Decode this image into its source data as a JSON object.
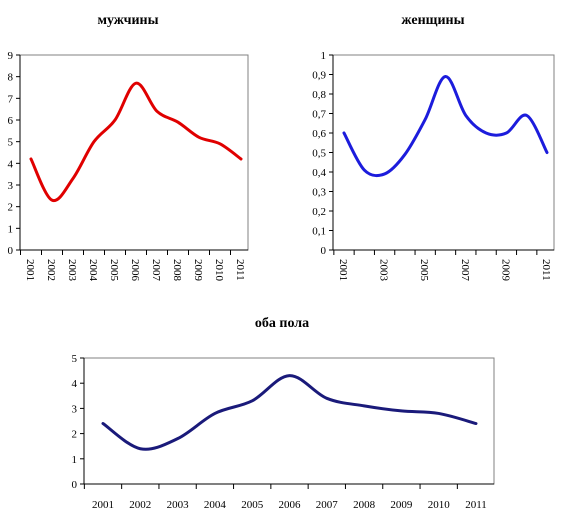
{
  "chart_data": [
    {
      "type": "line",
      "title": "мужчины",
      "x": [
        "2001",
        "2002",
        "2003",
        "2004",
        "2005",
        "2006",
        "2007",
        "2008",
        "2009",
        "2010",
        "2011"
      ],
      "series": [
        {
          "values": [
            4.2,
            2.3,
            3.3,
            5.0,
            6.0,
            7.7,
            6.4,
            5.9,
            5.2,
            4.9,
            4.2
          ],
          "color": "#e00000"
        }
      ],
      "ylim": [
        0,
        9
      ],
      "yticks": [
        "0",
        "1",
        "2",
        "3",
        "4",
        "5",
        "6",
        "7",
        "8",
        "9"
      ],
      "xticks": [
        "2001",
        "2002",
        "2003",
        "2004",
        "2005",
        "2006",
        "2007",
        "2008",
        "2009",
        "2010",
        "2011"
      ],
      "x_label_rotation": "vertical",
      "grid": false,
      "legend": "none"
    },
    {
      "type": "line",
      "title": "женщины",
      "x": [
        "2001",
        "2002",
        "2003",
        "2004",
        "2005",
        "2006",
        "2007",
        "2008",
        "2009",
        "2010",
        "2011"
      ],
      "series": [
        {
          "values": [
            0.6,
            0.41,
            0.39,
            0.49,
            0.67,
            0.89,
            0.69,
            0.6,
            0.6,
            0.69,
            0.5
          ],
          "color": "#1c1cdc"
        }
      ],
      "ylim": [
        0,
        1
      ],
      "yticks": [
        "0",
        "0,1",
        "0,2",
        "0,3",
        "0,4",
        "0,5",
        "0,6",
        "0,7",
        "0,8",
        "0,9",
        "1"
      ],
      "xticks": [
        "2001",
        "2003",
        "2005",
        "2007",
        "2009",
        "2011"
      ],
      "x_label_rotation": "vertical",
      "grid": false,
      "legend": "none"
    },
    {
      "type": "line",
      "title": "оба пола",
      "x": [
        "2001",
        "2002",
        "2003",
        "2004",
        "2005",
        "2006",
        "2007",
        "2008",
        "2009",
        "2010",
        "2011"
      ],
      "series": [
        {
          "values": [
            2.4,
            1.4,
            1.8,
            2.8,
            3.3,
            4.3,
            3.4,
            3.1,
            2.9,
            2.8,
            2.4
          ],
          "color": "#1a1a7a"
        }
      ],
      "ylim": [
        0,
        5
      ],
      "yticks": [
        "0",
        "1",
        "2",
        "3",
        "4",
        "5"
      ],
      "xticks": [
        "2001",
        "2002",
        "2003",
        "2004",
        "2005",
        "2006",
        "2007",
        "2008",
        "2009",
        "2010",
        "2011"
      ],
      "x_label_rotation": "horizontal",
      "grid": false,
      "legend": "none"
    }
  ]
}
